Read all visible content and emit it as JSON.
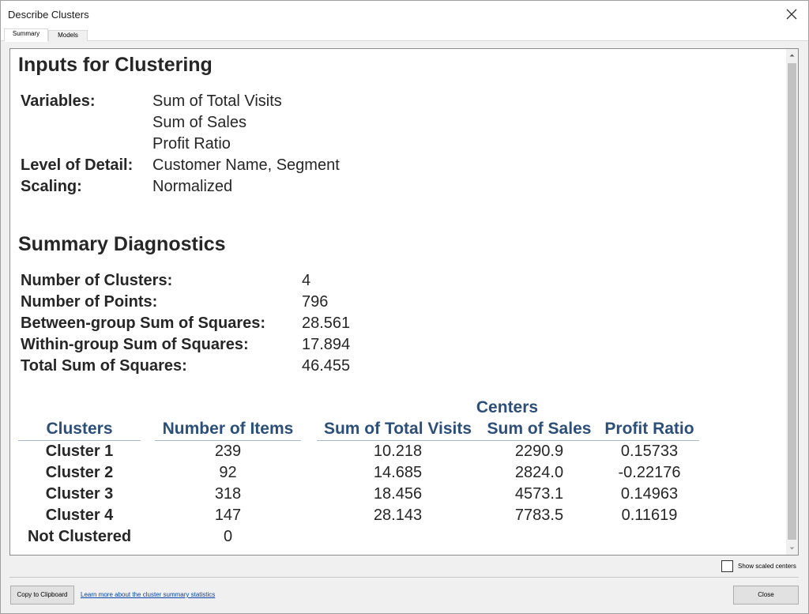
{
  "window": {
    "title": "Describe Clusters"
  },
  "tabs": [
    {
      "label": "Summary",
      "active": true
    },
    {
      "label": "Models",
      "active": false
    }
  ],
  "inputs": {
    "heading": "Inputs for Clustering",
    "variables_label": "Variables:",
    "variables": [
      "Sum of Total Visits",
      "Sum of Sales",
      "Profit Ratio"
    ],
    "lod_label": "Level of Detail:",
    "lod_value": "Customer Name, Segment",
    "scaling_label": "Scaling:",
    "scaling_value": "Normalized"
  },
  "diagnostics": {
    "heading": "Summary Diagnostics",
    "rows": [
      {
        "label": "Number of Clusters:",
        "value": "4"
      },
      {
        "label": "Number of Points:",
        "value": "796"
      },
      {
        "label": "Between-group Sum of Squares:",
        "value": "28.561"
      },
      {
        "label": "Within-group Sum of Squares:",
        "value": "17.894"
      },
      {
        "label": "Total Sum of Squares:",
        "value": "46.455"
      }
    ]
  },
  "table": {
    "group_header": "Centers",
    "headers": [
      "Clusters",
      "Number of Items",
      "Sum of Total Visits",
      "Sum of Sales",
      "Profit Ratio"
    ],
    "rows": [
      {
        "cluster": "Cluster 1",
        "items": "239",
        "visits": "10.218",
        "sales": "2290.9",
        "profit": "0.15733"
      },
      {
        "cluster": "Cluster 2",
        "items": "92",
        "visits": "14.685",
        "sales": "2824.0",
        "profit": "-0.22176"
      },
      {
        "cluster": "Cluster 3",
        "items": "318",
        "visits": "18.456",
        "sales": "4573.1",
        "profit": "0.14963"
      },
      {
        "cluster": "Cluster 4",
        "items": "147",
        "visits": "28.143",
        "sales": "7783.5",
        "profit": "0.11619"
      },
      {
        "cluster": "Not Clustered",
        "items": "0",
        "visits": "",
        "sales": "",
        "profit": ""
      }
    ]
  },
  "footer": {
    "show_scaled_label": "Show scaled centers",
    "show_scaled_checked": false,
    "copy_button": "Copy to Clipboard",
    "learn_link": "Learn more about the cluster summary statistics",
    "close_button": "Close"
  },
  "colors": {
    "table_header": "#2c4f7a",
    "text": "#262626"
  }
}
